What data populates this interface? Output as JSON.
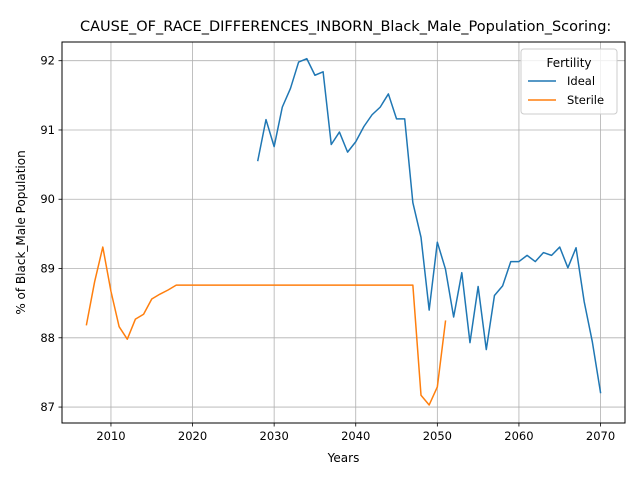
{
  "chart_data": {
    "type": "line",
    "title": "CAUSE_OF_RACE_DIFFERENCES_INBORN_Black_Male_Population_Scoring:",
    "xlabel": "Years",
    "ylabel": "% of Black_Male Population",
    "xlim": [
      2004,
      2073
    ],
    "ylim": [
      86.77,
      92.27
    ],
    "xticks": [
      2010,
      2020,
      2030,
      2040,
      2050,
      2060,
      2070
    ],
    "yticks": [
      87,
      88,
      89,
      90,
      91,
      92
    ],
    "grid": true,
    "legend": {
      "title": "Fertility",
      "placement": "top-right"
    },
    "series": [
      {
        "name": "Ideal",
        "color": "#1f77b4",
        "x": [
          2028,
          2029,
          2030,
          2031,
          2032,
          2033,
          2034,
          2035,
          2036,
          2037,
          2038,
          2039,
          2040,
          2041,
          2042,
          2043,
          2044,
          2045,
          2046,
          2047,
          2048,
          2049,
          2050,
          2051,
          2052,
          2053,
          2054,
          2055,
          2056,
          2057,
          2058,
          2059,
          2060,
          2061,
          2062,
          2063,
          2064,
          2065,
          2066,
          2067,
          2068,
          2069,
          2070
        ],
        "values": [
          90.56,
          91.15,
          90.76,
          91.33,
          91.6,
          91.98,
          92.03,
          91.79,
          91.84,
          90.79,
          90.97,
          90.68,
          90.83,
          91.05,
          91.22,
          91.33,
          91.52,
          91.16,
          91.16,
          89.95,
          89.45,
          88.4,
          89.38,
          88.99,
          88.3,
          88.94,
          87.93,
          88.74,
          87.83,
          88.61,
          88.75,
          89.1,
          89.1,
          89.19,
          89.1,
          89.23,
          89.19,
          89.31,
          89.01,
          89.3,
          88.52,
          87.94,
          87.21
        ]
      },
      {
        "name": "Sterile",
        "color": "#ff7f0e",
        "x": [
          2007,
          2008,
          2009,
          2010,
          2011,
          2012,
          2013,
          2014,
          2015,
          2016,
          2017,
          2018,
          2019,
          2020,
          2021,
          2022,
          2023,
          2024,
          2025,
          2026,
          2027,
          2028,
          2029,
          2030,
          2031,
          2032,
          2033,
          2034,
          2035,
          2036,
          2037,
          2038,
          2039,
          2040,
          2041,
          2042,
          2043,
          2044,
          2045,
          2046,
          2047,
          2048,
          2049,
          2050,
          2051
        ],
        "values": [
          88.19,
          88.81,
          89.31,
          88.67,
          88.16,
          87.98,
          88.27,
          88.34,
          88.56,
          88.63,
          88.69,
          88.76,
          88.76,
          88.76,
          88.76,
          88.76,
          88.76,
          88.76,
          88.76,
          88.76,
          88.76,
          88.76,
          88.76,
          88.76,
          88.76,
          88.76,
          88.76,
          88.76,
          88.76,
          88.76,
          88.76,
          88.76,
          88.76,
          88.76,
          88.76,
          88.76,
          88.76,
          88.76,
          88.76,
          88.76,
          88.76,
          87.17,
          87.03,
          87.29,
          88.24
        ]
      }
    ]
  }
}
